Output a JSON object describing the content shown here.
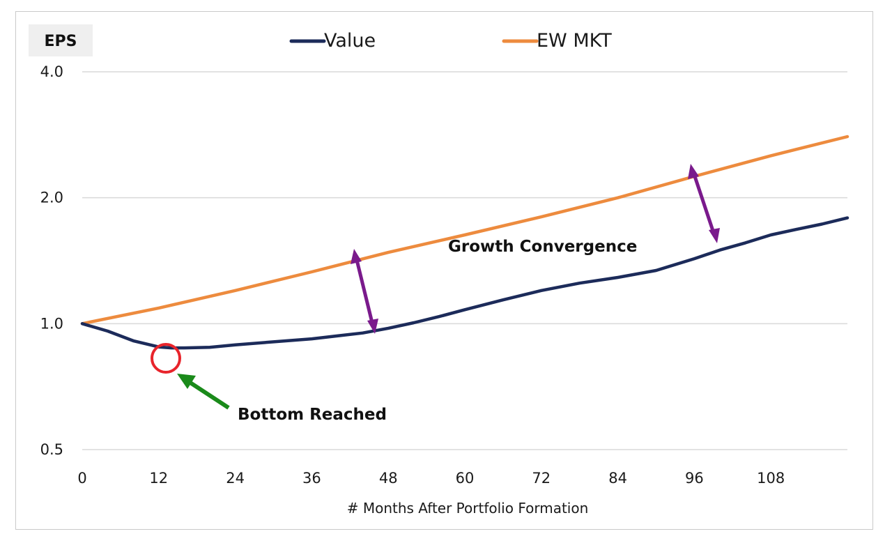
{
  "chart_data": {
    "type": "line",
    "y_label_box": "EPS",
    "xlabel": "# Months After Portfolio Formation",
    "y_scale": "log",
    "ylim": [
      0.5,
      4.0
    ],
    "y_ticks": [
      {
        "value": 4.0,
        "label": "4.0"
      },
      {
        "value": 2.0,
        "label": "2.0"
      },
      {
        "value": 1.0,
        "label": "1.0"
      },
      {
        "value": 0.5,
        "label": "0.5"
      }
    ],
    "xlim": [
      0,
      120
    ],
    "x_ticks": [
      0,
      12,
      24,
      36,
      48,
      60,
      72,
      84,
      96,
      108
    ],
    "grid": "horizontal",
    "legend_position": "top",
    "series": [
      {
        "name": "Value",
        "color": "#1c2b5a",
        "x": [
          0,
          4,
          8,
          12,
          14,
          16,
          20,
          24,
          30,
          36,
          40,
          44,
          48,
          52,
          56,
          60,
          66,
          72,
          78,
          84,
          90,
          96,
          100,
          104,
          108,
          112,
          116,
          120
        ],
        "y": [
          1.0,
          0.96,
          0.91,
          0.88,
          0.875,
          0.875,
          0.878,
          0.89,
          0.905,
          0.92,
          0.935,
          0.95,
          0.975,
          1.005,
          1.04,
          1.08,
          1.14,
          1.2,
          1.25,
          1.29,
          1.34,
          1.43,
          1.5,
          1.56,
          1.63,
          1.68,
          1.73,
          1.79
        ]
      },
      {
        "name": "EW MKT",
        "color": "#ed8b3e",
        "x": [
          0,
          12,
          24,
          36,
          48,
          60,
          72,
          84,
          96,
          108,
          120
        ],
        "y": [
          1.0,
          1.09,
          1.2,
          1.33,
          1.48,
          1.63,
          1.8,
          2.0,
          2.25,
          2.52,
          2.8
        ]
      }
    ],
    "annotations": [
      {
        "text": "Growth Convergence"
      },
      {
        "text": "Bottom Reached"
      }
    ]
  }
}
